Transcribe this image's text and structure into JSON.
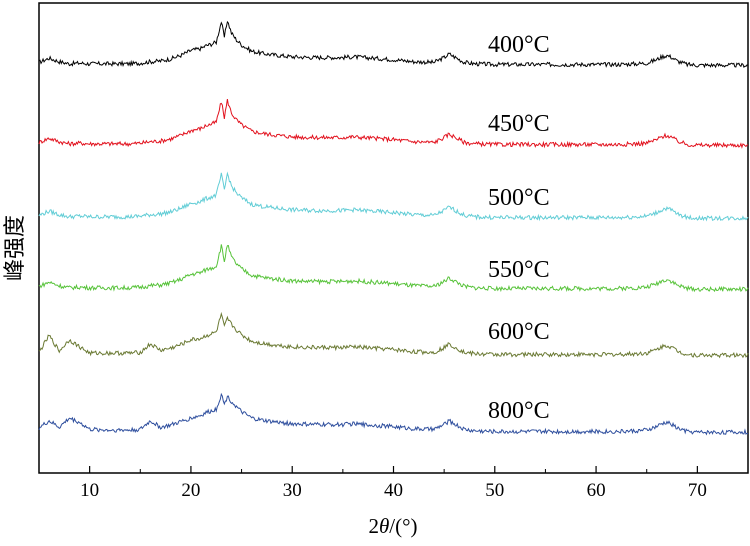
{
  "chart_data": {
    "type": "line",
    "title": "",
    "xlabel_prefix": "2",
    "xlabel_italic": "θ",
    "xlabel_suffix": "/(°)",
    "ylabel": "峰强度",
    "xlim": [
      5,
      75
    ],
    "xticks": [
      10,
      20,
      30,
      40,
      50,
      60,
      70
    ],
    "yticks_shown": false,
    "grid": false,
    "legend": "inline labels on curves",
    "series": [
      {
        "name": "400°C",
        "color": "#000000",
        "x": [
          5,
          6,
          7,
          8,
          9,
          10,
          12,
          14,
          15,
          16,
          17,
          18,
          19,
          20,
          21,
          21.5,
          22,
          22.5,
          23,
          23.3,
          23.6,
          24,
          24.5,
          25,
          26,
          27,
          28,
          30,
          32,
          34,
          35,
          36,
          37,
          38,
          40,
          42,
          44,
          45,
          45.5,
          46,
          47,
          48,
          50,
          52,
          54,
          56,
          58,
          60,
          62,
          64,
          65,
          66,
          66.5,
          67,
          67.5,
          68,
          69,
          70,
          72,
          75
        ],
        "y": [
          0.08,
          0.14,
          0.09,
          0.06,
          0.07,
          0.06,
          0.06,
          0.06,
          0.07,
          0.09,
          0.1,
          0.13,
          0.18,
          0.25,
          0.28,
          0.32,
          0.34,
          0.37,
          0.66,
          0.44,
          0.68,
          0.5,
          0.4,
          0.33,
          0.24,
          0.21,
          0.19,
          0.16,
          0.15,
          0.15,
          0.15,
          0.16,
          0.15,
          0.14,
          0.12,
          0.09,
          0.08,
          0.15,
          0.2,
          0.16,
          0.08,
          0.06,
          0.05,
          0.05,
          0.05,
          0.05,
          0.05,
          0.05,
          0.05,
          0.06,
          0.07,
          0.12,
          0.16,
          0.18,
          0.15,
          0.1,
          0.05,
          0.04,
          0.04,
          0.04
        ]
      },
      {
        "name": "450°C",
        "color": "#e2121e",
        "x": [
          5,
          6,
          7,
          8,
          9,
          10,
          12,
          14,
          15,
          16,
          17,
          18,
          19,
          20,
          21,
          21.5,
          22,
          22.5,
          23,
          23.3,
          23.6,
          24,
          24.5,
          25,
          26,
          27,
          28,
          30,
          32,
          34,
          35,
          36,
          37,
          38,
          40,
          42,
          44,
          45,
          45.5,
          46,
          47,
          48,
          50,
          52,
          54,
          56,
          58,
          60,
          62,
          64,
          65,
          66,
          66.5,
          67,
          67.5,
          68,
          69,
          70,
          72,
          75
        ],
        "y": [
          0.08,
          0.14,
          0.09,
          0.06,
          0.07,
          0.06,
          0.06,
          0.06,
          0.07,
          0.09,
          0.1,
          0.13,
          0.18,
          0.25,
          0.28,
          0.32,
          0.34,
          0.37,
          0.66,
          0.44,
          0.68,
          0.5,
          0.4,
          0.33,
          0.24,
          0.21,
          0.19,
          0.16,
          0.15,
          0.15,
          0.15,
          0.16,
          0.15,
          0.14,
          0.12,
          0.09,
          0.08,
          0.15,
          0.2,
          0.16,
          0.08,
          0.06,
          0.05,
          0.05,
          0.05,
          0.05,
          0.05,
          0.05,
          0.05,
          0.06,
          0.07,
          0.12,
          0.16,
          0.18,
          0.15,
          0.1,
          0.05,
          0.04,
          0.04,
          0.04
        ]
      },
      {
        "name": "500°C",
        "color": "#62cdd6",
        "x": [
          5,
          6,
          7,
          8,
          9,
          10,
          12,
          14,
          15,
          16,
          17,
          18,
          19,
          20,
          21,
          21.5,
          22,
          22.5,
          23,
          23.3,
          23.6,
          24,
          24.5,
          25,
          26,
          27,
          28,
          30,
          32,
          34,
          35,
          36,
          37,
          38,
          40,
          42,
          44,
          45,
          45.5,
          46,
          47,
          48,
          50,
          52,
          54,
          56,
          58,
          60,
          62,
          64,
          65,
          66,
          66.5,
          67,
          67.5,
          68,
          69,
          70,
          72,
          75
        ],
        "y": [
          0.08,
          0.14,
          0.09,
          0.06,
          0.07,
          0.06,
          0.06,
          0.06,
          0.07,
          0.09,
          0.1,
          0.13,
          0.18,
          0.25,
          0.28,
          0.32,
          0.34,
          0.37,
          0.66,
          0.44,
          0.68,
          0.5,
          0.4,
          0.33,
          0.24,
          0.21,
          0.19,
          0.16,
          0.15,
          0.15,
          0.15,
          0.16,
          0.15,
          0.14,
          0.12,
          0.09,
          0.08,
          0.15,
          0.2,
          0.16,
          0.08,
          0.06,
          0.05,
          0.05,
          0.05,
          0.05,
          0.05,
          0.05,
          0.05,
          0.06,
          0.07,
          0.12,
          0.16,
          0.18,
          0.15,
          0.1,
          0.05,
          0.04,
          0.04,
          0.04
        ]
      },
      {
        "name": "550°C",
        "color": "#58c33b",
        "x": [
          5,
          6,
          7,
          8,
          9,
          10,
          12,
          14,
          15,
          16,
          17,
          18,
          19,
          20,
          21,
          21.5,
          22,
          22.5,
          23,
          23.3,
          23.6,
          24,
          24.5,
          25,
          26,
          27,
          28,
          30,
          32,
          34,
          35,
          36,
          37,
          38,
          40,
          42,
          44,
          45,
          45.5,
          46,
          47,
          48,
          50,
          52,
          54,
          56,
          58,
          60,
          62,
          64,
          65,
          66,
          66.5,
          67,
          67.5,
          68,
          69,
          70,
          72,
          75
        ],
        "y": [
          0.08,
          0.14,
          0.09,
          0.06,
          0.07,
          0.06,
          0.06,
          0.06,
          0.07,
          0.09,
          0.1,
          0.13,
          0.18,
          0.25,
          0.28,
          0.32,
          0.34,
          0.37,
          0.66,
          0.44,
          0.68,
          0.5,
          0.4,
          0.33,
          0.24,
          0.21,
          0.19,
          0.16,
          0.15,
          0.15,
          0.15,
          0.16,
          0.15,
          0.14,
          0.12,
          0.09,
          0.08,
          0.15,
          0.2,
          0.16,
          0.08,
          0.06,
          0.05,
          0.05,
          0.05,
          0.05,
          0.05,
          0.05,
          0.05,
          0.06,
          0.07,
          0.12,
          0.16,
          0.18,
          0.15,
          0.1,
          0.05,
          0.04,
          0.04,
          0.04
        ]
      },
      {
        "name": "600°C",
        "color": "#6b7a34",
        "x": [
          5,
          6,
          7,
          8,
          9,
          10,
          12,
          14,
          15,
          16,
          17,
          18,
          19,
          20,
          21,
          21.5,
          22,
          22.5,
          23,
          23.3,
          23.6,
          24,
          24.5,
          25,
          26,
          27,
          28,
          30,
          32,
          34,
          35,
          36,
          37,
          38,
          40,
          42,
          44,
          45,
          45.5,
          46,
          47,
          48,
          50,
          52,
          54,
          56,
          58,
          60,
          62,
          64,
          65,
          66,
          66.5,
          67,
          67.5,
          68,
          69,
          70,
          72,
          75
        ],
        "y": [
          0.08,
          0.32,
          0.1,
          0.26,
          0.16,
          0.07,
          0.07,
          0.07,
          0.08,
          0.2,
          0.11,
          0.14,
          0.19,
          0.26,
          0.28,
          0.32,
          0.34,
          0.37,
          0.62,
          0.44,
          0.56,
          0.48,
          0.4,
          0.33,
          0.24,
          0.21,
          0.19,
          0.16,
          0.15,
          0.15,
          0.15,
          0.16,
          0.15,
          0.14,
          0.12,
          0.09,
          0.08,
          0.15,
          0.2,
          0.16,
          0.08,
          0.06,
          0.05,
          0.05,
          0.05,
          0.05,
          0.05,
          0.05,
          0.05,
          0.06,
          0.07,
          0.12,
          0.16,
          0.18,
          0.15,
          0.1,
          0.05,
          0.04,
          0.04,
          0.04
        ]
      },
      {
        "name": "800°C",
        "color": "#2f4f9e",
        "x": [
          5,
          6,
          7,
          8,
          9,
          10,
          12,
          14,
          15,
          16,
          17,
          18,
          19,
          20,
          21,
          21.5,
          22,
          22.5,
          23,
          23.3,
          23.6,
          24,
          24.5,
          25,
          26,
          27,
          28,
          30,
          32,
          34,
          35,
          36,
          37,
          38,
          40,
          42,
          44,
          45,
          45.5,
          46,
          47,
          48,
          50,
          52,
          54,
          56,
          58,
          60,
          62,
          64,
          65,
          66,
          66.5,
          67,
          67.5,
          68,
          69,
          70,
          72,
          75
        ],
        "y": [
          0.1,
          0.2,
          0.11,
          0.24,
          0.18,
          0.08,
          0.07,
          0.07,
          0.08,
          0.2,
          0.11,
          0.14,
          0.19,
          0.24,
          0.28,
          0.32,
          0.34,
          0.37,
          0.58,
          0.44,
          0.55,
          0.48,
          0.4,
          0.33,
          0.24,
          0.21,
          0.19,
          0.16,
          0.15,
          0.15,
          0.15,
          0.16,
          0.15,
          0.14,
          0.12,
          0.09,
          0.08,
          0.15,
          0.2,
          0.16,
          0.08,
          0.06,
          0.05,
          0.05,
          0.05,
          0.05,
          0.05,
          0.05,
          0.05,
          0.06,
          0.07,
          0.12,
          0.16,
          0.18,
          0.15,
          0.1,
          0.05,
          0.04,
          0.04,
          0.04
        ]
      }
    ]
  }
}
